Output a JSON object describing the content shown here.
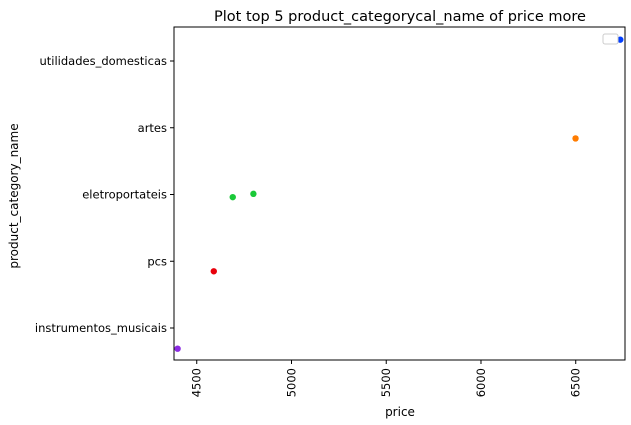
{
  "chart_data": {
    "type": "scatter",
    "title": "Plot top 5 product_categorycal_name of price more",
    "xlabel": "price",
    "ylabel": "product_category_name",
    "xlim": [
      4380,
      6760
    ],
    "x_ticks": [
      4500,
      5000,
      5500,
      6000,
      6500
    ],
    "categories": [
      "utilidades_domesticas",
      "artes",
      "eletroportateis",
      "pcs",
      "instrumentos_musicais"
    ],
    "points": [
      {
        "category": "utilidades_domesticas",
        "x": 6735,
        "jitter": -0.32,
        "color": "#023eff"
      },
      {
        "category": "artes",
        "x": 6499,
        "jitter": 0.16,
        "color": "#ff7c00"
      },
      {
        "category": "eletroportateis",
        "x": 4690,
        "jitter": 0.04,
        "color": "#1ac938"
      },
      {
        "category": "eletroportateis",
        "x": 4799,
        "jitter": -0.01,
        "color": "#1ac938"
      },
      {
        "category": "pcs",
        "x": 4590,
        "jitter": 0.15,
        "color": "#e8000b"
      },
      {
        "category": "instrumentos_musicais",
        "x": 4399,
        "jitter": 0.31,
        "color": "#8b2be2"
      }
    ],
    "grid": false,
    "legend": {
      "position": "top-right",
      "entries": []
    }
  }
}
